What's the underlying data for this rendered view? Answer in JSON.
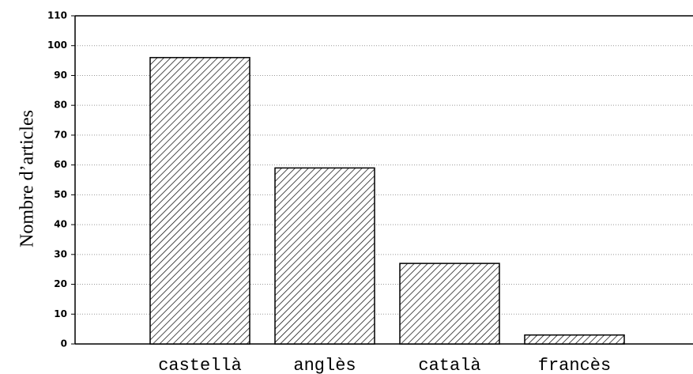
{
  "chart_data": {
    "type": "bar",
    "ylabel": "Nombre d’articles",
    "categories": [
      "castellà",
      "anglès",
      "català",
      "francès"
    ],
    "values": [
      96,
      59,
      27,
      3
    ],
    "color": "#000000",
    "ylim": [
      0,
      110
    ],
    "yticks": [
      0,
      10,
      20,
      30,
      40,
      50,
      60,
      70,
      80,
      90,
      100,
      110
    ],
    "grid": true
  }
}
